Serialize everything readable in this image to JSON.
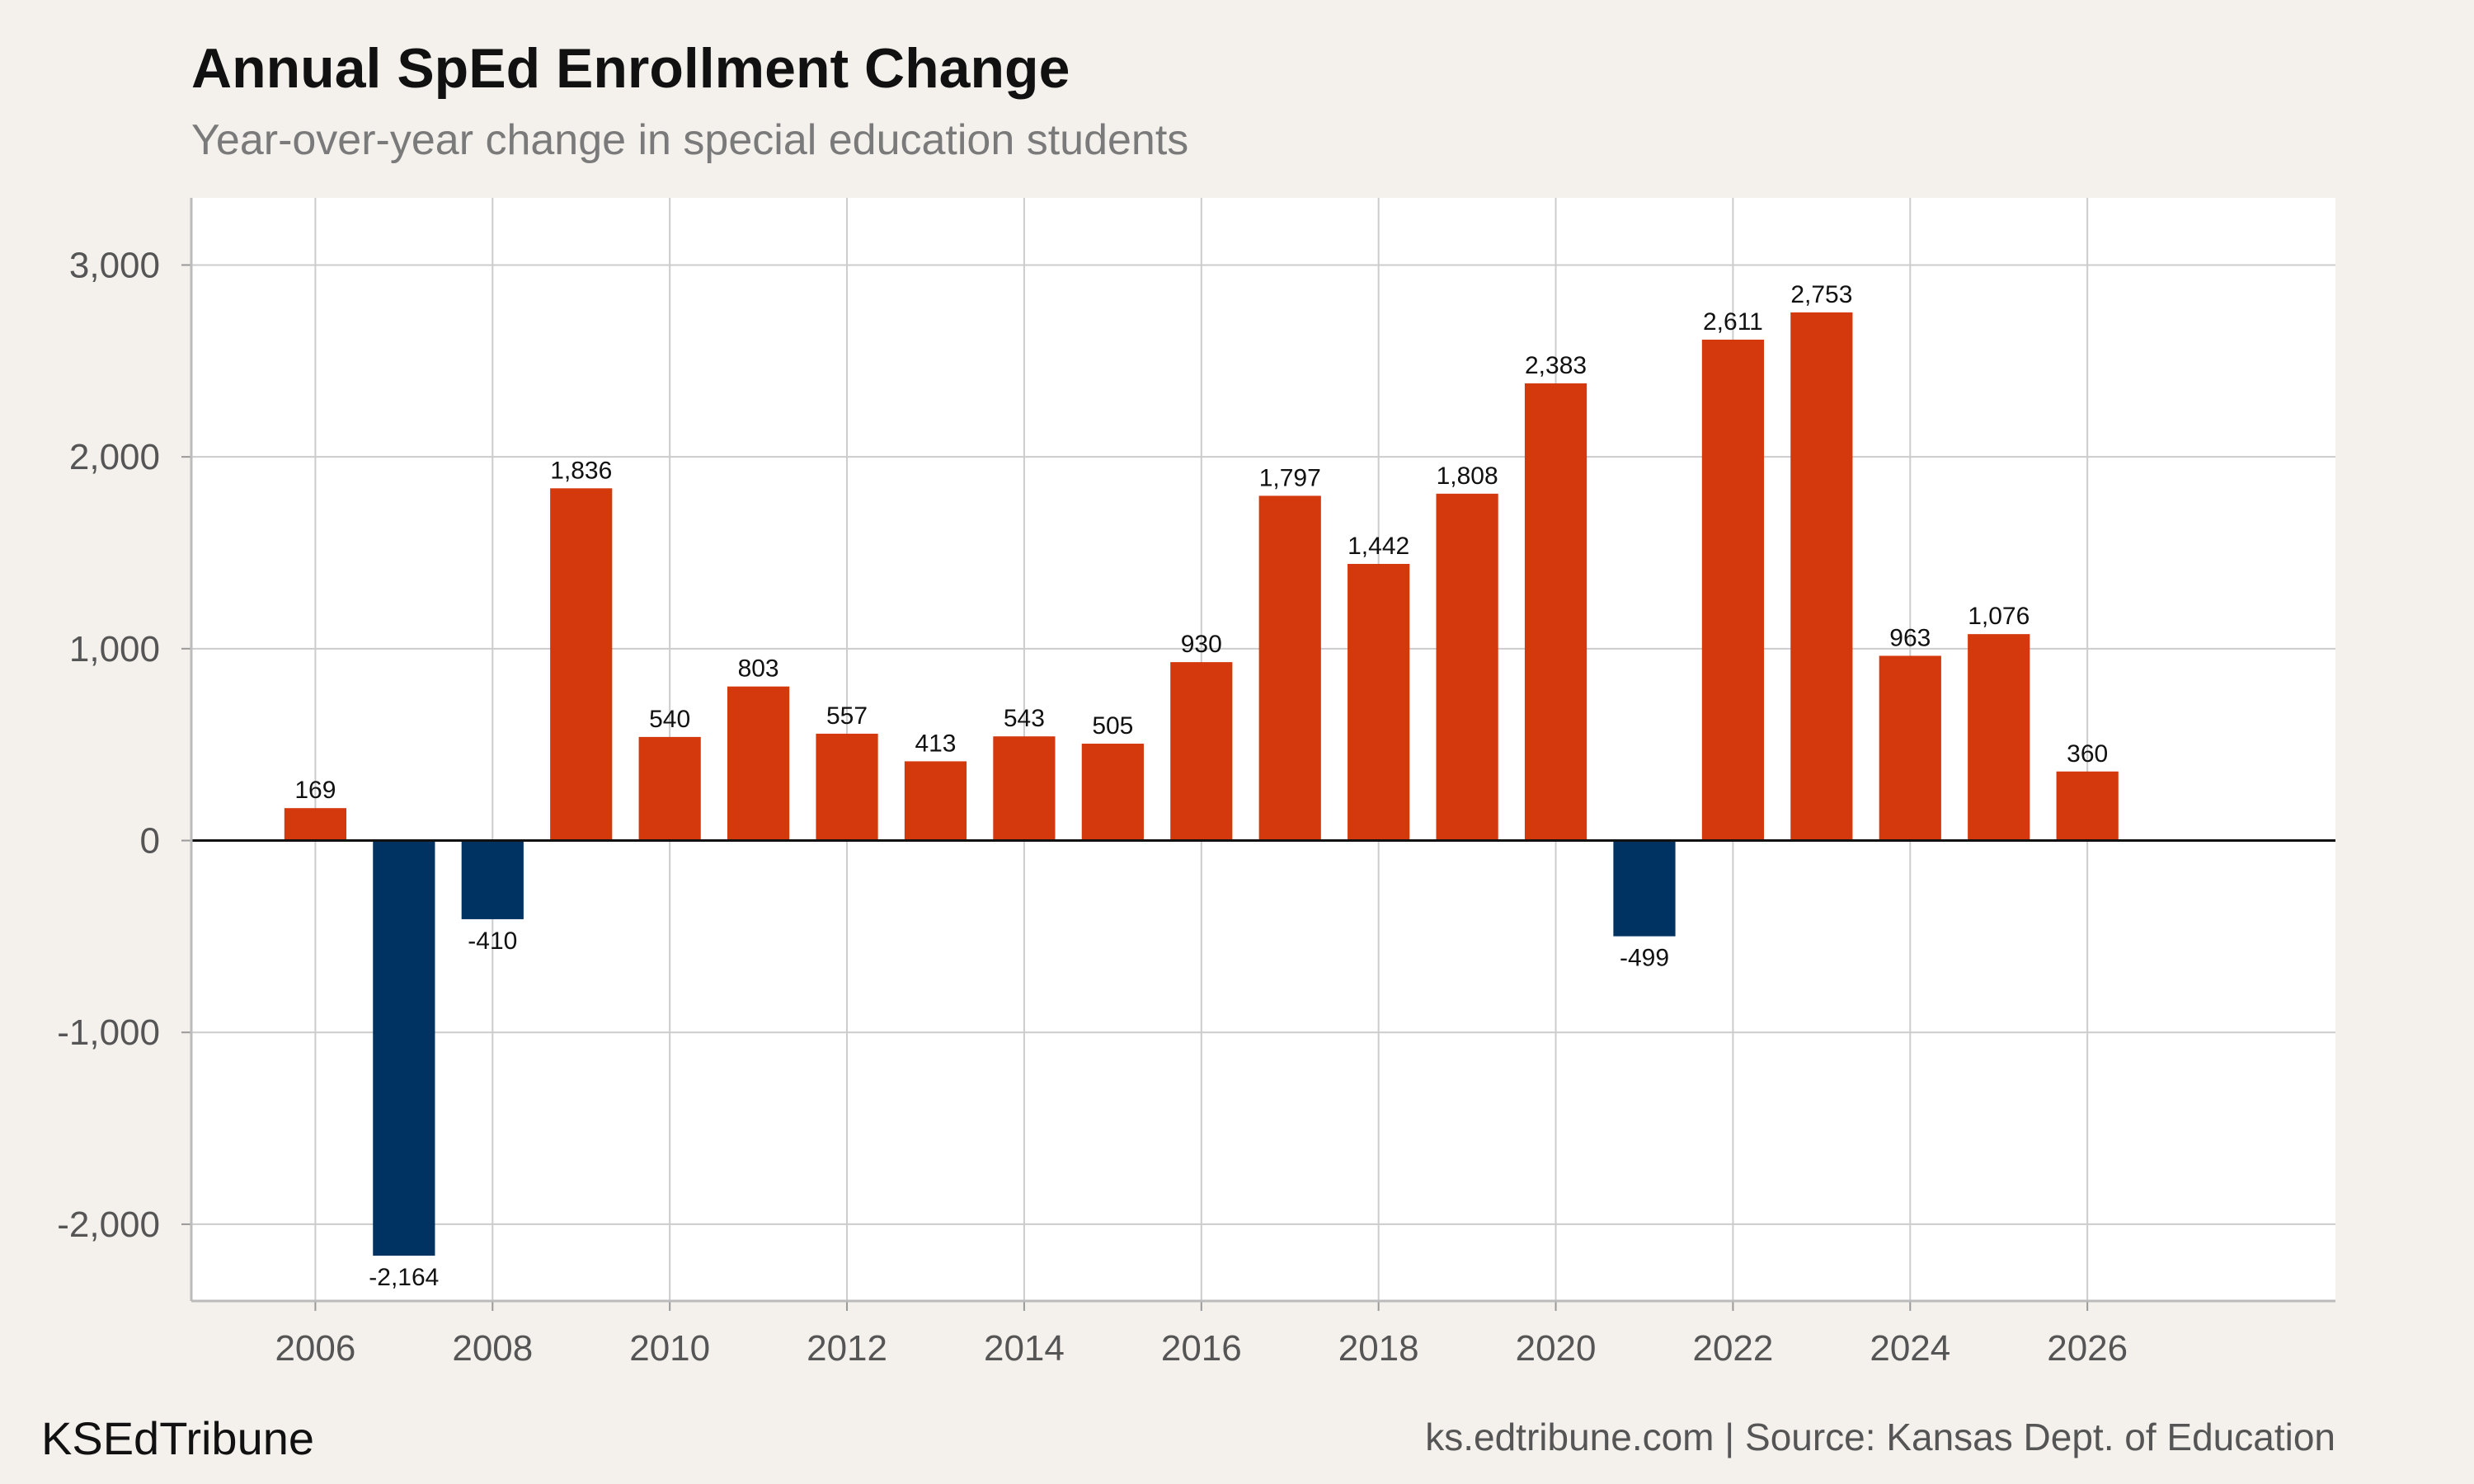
{
  "title": "Annual SpEd Enrollment Change",
  "subtitle": "Year-over-year change in special education students",
  "footer": {
    "brand": "KSEdTribune",
    "source": "ks.edtribune.com | Source: Kansas Dept. of Education"
  },
  "colors": {
    "positive": "#d4380d",
    "negative": "#003262",
    "grid": "#cccccc",
    "plot_background": "#ffffff",
    "page_background": "#f4f1ec"
  },
  "chart_data": {
    "type": "bar",
    "title": "Annual SpEd Enrollment Change",
    "subtitle": "Year-over-year change in special education students",
    "xlabel": "",
    "ylabel": "",
    "grid": true,
    "legend": "none",
    "xlim": [
      2004.6,
      2028.8
    ],
    "ylim": [
      -2400,
      3350
    ],
    "x_ticks": [
      2006,
      2008,
      2010,
      2012,
      2014,
      2016,
      2018,
      2020,
      2022,
      2024,
      2026
    ],
    "y_ticks": [
      -2000,
      -1000,
      0,
      1000,
      2000,
      3000
    ],
    "y_tick_labels": [
      "-2,000",
      "-1,000",
      "0",
      "1,000",
      "2,000",
      "3,000"
    ],
    "x": [
      2006,
      2007,
      2008,
      2009,
      2010,
      2011,
      2012,
      2013,
      2014,
      2015,
      2016,
      2017,
      2018,
      2019,
      2020,
      2021,
      2022,
      2023,
      2024,
      2025,
      2026
    ],
    "values": [
      169,
      -2164,
      -410,
      1836,
      540,
      803,
      557,
      413,
      543,
      505,
      930,
      1797,
      1442,
      1808,
      2383,
      -499,
      2611,
      2753,
      963,
      1076,
      360
    ],
    "data_labels": [
      "169",
      "-2,164",
      "-410",
      "1,836",
      "540",
      "803",
      "557",
      "413",
      "543",
      "505",
      "930",
      "1,797",
      "1,442",
      "1,808",
      "2,383",
      "-499",
      "2,611",
      "2,753",
      "963",
      "1,076",
      "360"
    ]
  }
}
